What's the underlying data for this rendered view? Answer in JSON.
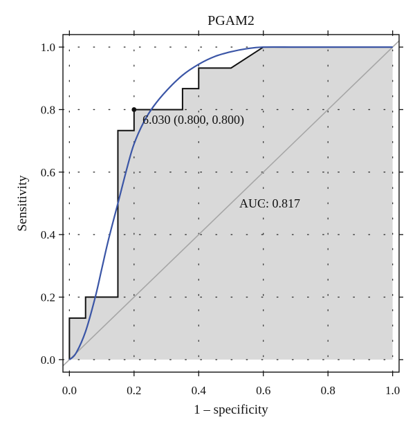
{
  "chart_data": {
    "type": "line",
    "title": "PGAM2",
    "xlabel": "1 – specificity",
    "ylabel": "Sensitivity",
    "xlim": [
      -0.02,
      1.02
    ],
    "ylim": [
      -0.04,
      1.04
    ],
    "xticks": [
      "0.0",
      "0.2",
      "0.4",
      "0.6",
      "0.8",
      "1.0"
    ],
    "yticks": [
      "0.0",
      "0.2",
      "0.4",
      "0.6",
      "0.8",
      "1.0"
    ],
    "grid": "dotted",
    "series": [
      {
        "kind": "empirical-step",
        "color": "#111111",
        "fill": "#d9d9d9",
        "x": [
          0.0,
          0.0,
          0.05,
          0.05,
          0.15,
          0.15,
          0.2,
          0.2,
          0.35,
          0.35,
          0.4,
          0.4,
          0.5,
          0.6,
          1.0
        ],
        "y": [
          0.0,
          0.133,
          0.133,
          0.2,
          0.2,
          0.733,
          0.733,
          0.8,
          0.8,
          0.867,
          0.867,
          0.933,
          0.933,
          1.0,
          1.0
        ]
      },
      {
        "kind": "smoothed",
        "color": "#3a55a6",
        "x": [
          0.0,
          0.02,
          0.05,
          0.08,
          0.1,
          0.12,
          0.15,
          0.18,
          0.2,
          0.23,
          0.26,
          0.3,
          0.35,
          0.4,
          0.45,
          0.5,
          0.55,
          0.6,
          0.7,
          0.8,
          0.9,
          1.0
        ],
        "y": [
          0.0,
          0.02,
          0.09,
          0.2,
          0.29,
          0.38,
          0.5,
          0.62,
          0.69,
          0.76,
          0.81,
          0.86,
          0.91,
          0.945,
          0.97,
          0.985,
          0.995,
          1.0,
          1.0,
          1.0,
          1.0,
          1.0
        ]
      },
      {
        "kind": "reference-diagonal",
        "color": "#a6a6a6",
        "x": [
          -0.02,
          1.02
        ],
        "y": [
          -0.02,
          1.02
        ]
      }
    ],
    "cutoff_point": {
      "x": 0.2,
      "y": 0.8,
      "label": "6.030 (0.800, 0.800)"
    },
    "auc_label": "AUC: 0.817"
  }
}
